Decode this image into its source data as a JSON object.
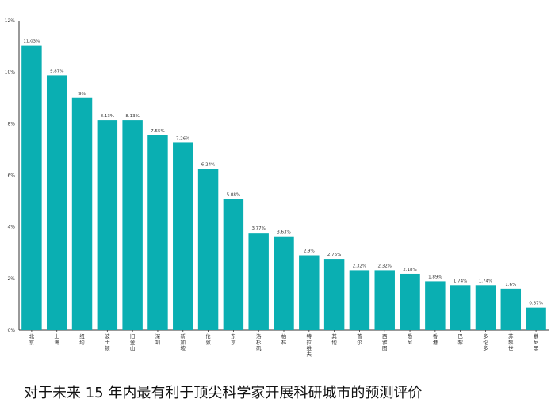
{
  "caption": "对于未来 15 年内最有利于顶尖科学家开展科研城市的预测评价",
  "chart_data": {
    "type": "bar",
    "title": "",
    "xlabel": "",
    "ylabel": "",
    "ylim": [
      0,
      12
    ],
    "yticks": [
      "0%",
      "2%",
      "4%",
      "6%",
      "8%",
      "10%",
      "12%"
    ],
    "bar_color": "#0aafb2",
    "categories": [
      "北京",
      "上海",
      "纽约",
      "波士顿",
      "旧金山",
      "深圳",
      "新加坡",
      "伦敦",
      "东京",
      "洛杉矶",
      "柏林",
      "特拉维夫",
      "其他",
      "首尔",
      "西雅图",
      "悉尼",
      "香港",
      "巴黎",
      "多伦多",
      "苏黎世",
      "慕尼黑"
    ],
    "values": [
      11.03,
      9.87,
      9,
      8.13,
      8.13,
      7.55,
      7.26,
      6.24,
      5.08,
      3.77,
      3.63,
      2.9,
      2.76,
      2.32,
      2.32,
      2.18,
      1.89,
      1.74,
      1.74,
      1.6,
      0.87
    ],
    "data_labels": [
      "11.03%",
      "9.87%",
      "9%",
      "8.13%",
      "8.13%",
      "7.55%",
      "7.26%",
      "6.24%",
      "5.08%",
      "3.77%",
      "3.63%",
      "2.9%",
      "2.76%",
      "2.32%",
      "2.32%",
      "2.18%",
      "1.89%",
      "1.74%",
      "1.74%",
      "1.6%",
      "0.87%"
    ]
  }
}
